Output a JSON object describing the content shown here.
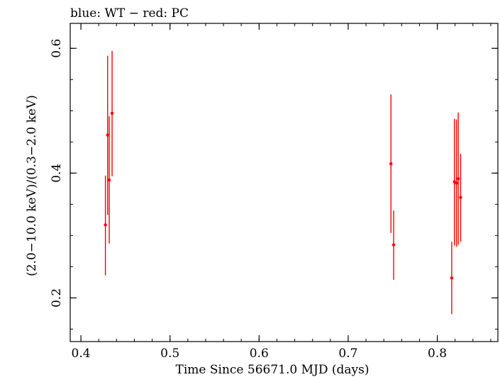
{
  "chart_data": {
    "type": "scatter",
    "title": "blue: WT − red: PC",
    "xlabel": "Time Since 56671.0 MJD (days)",
    "ylabel": "(2.0−10.0 keV)/(0.3−2.0 keV)",
    "xlim": [
      0.388,
      0.868
    ],
    "ylim": [
      0.13,
      0.64
    ],
    "x_ticks": [
      0.4,
      0.5,
      0.6,
      0.7,
      0.8
    ],
    "x_tick_labels": [
      "0.4",
      "0.5",
      "0.6",
      "0.7",
      "0.8"
    ],
    "y_ticks": [
      0.2,
      0.4,
      0.6
    ],
    "y_tick_labels": [
      "0.2",
      "0.4",
      "0.6"
    ],
    "grid": false,
    "series": [
      {
        "color": "#ff0000",
        "points": [
          {
            "x": 0.4275,
            "y": 0.317,
            "ylo": 0.236,
            "yhi": 0.396
          },
          {
            "x": 0.43,
            "y": 0.461,
            "ylo": 0.333,
            "yhi": 0.588
          },
          {
            "x": 0.4318,
            "y": 0.389,
            "ylo": 0.287,
            "yhi": 0.491
          },
          {
            "x": 0.435,
            "y": 0.496,
            "ylo": 0.395,
            "yhi": 0.596
          },
          {
            "x": 0.748,
            "y": 0.415,
            "ylo": 0.304,
            "yhi": 0.526
          },
          {
            "x": 0.751,
            "y": 0.285,
            "ylo": 0.229,
            "yhi": 0.34
          },
          {
            "x": 0.8162,
            "y": 0.232,
            "ylo": 0.174,
            "yhi": 0.29
          },
          {
            "x": 0.8192,
            "y": 0.386,
            "ylo": 0.284,
            "yhi": 0.487
          },
          {
            "x": 0.8215,
            "y": 0.384,
            "ylo": 0.282,
            "yhi": 0.486
          },
          {
            "x": 0.8235,
            "y": 0.391,
            "ylo": 0.285,
            "yhi": 0.497
          },
          {
            "x": 0.8262,
            "y": 0.361,
            "ylo": 0.29,
            "yhi": 0.431
          }
        ]
      }
    ]
  }
}
